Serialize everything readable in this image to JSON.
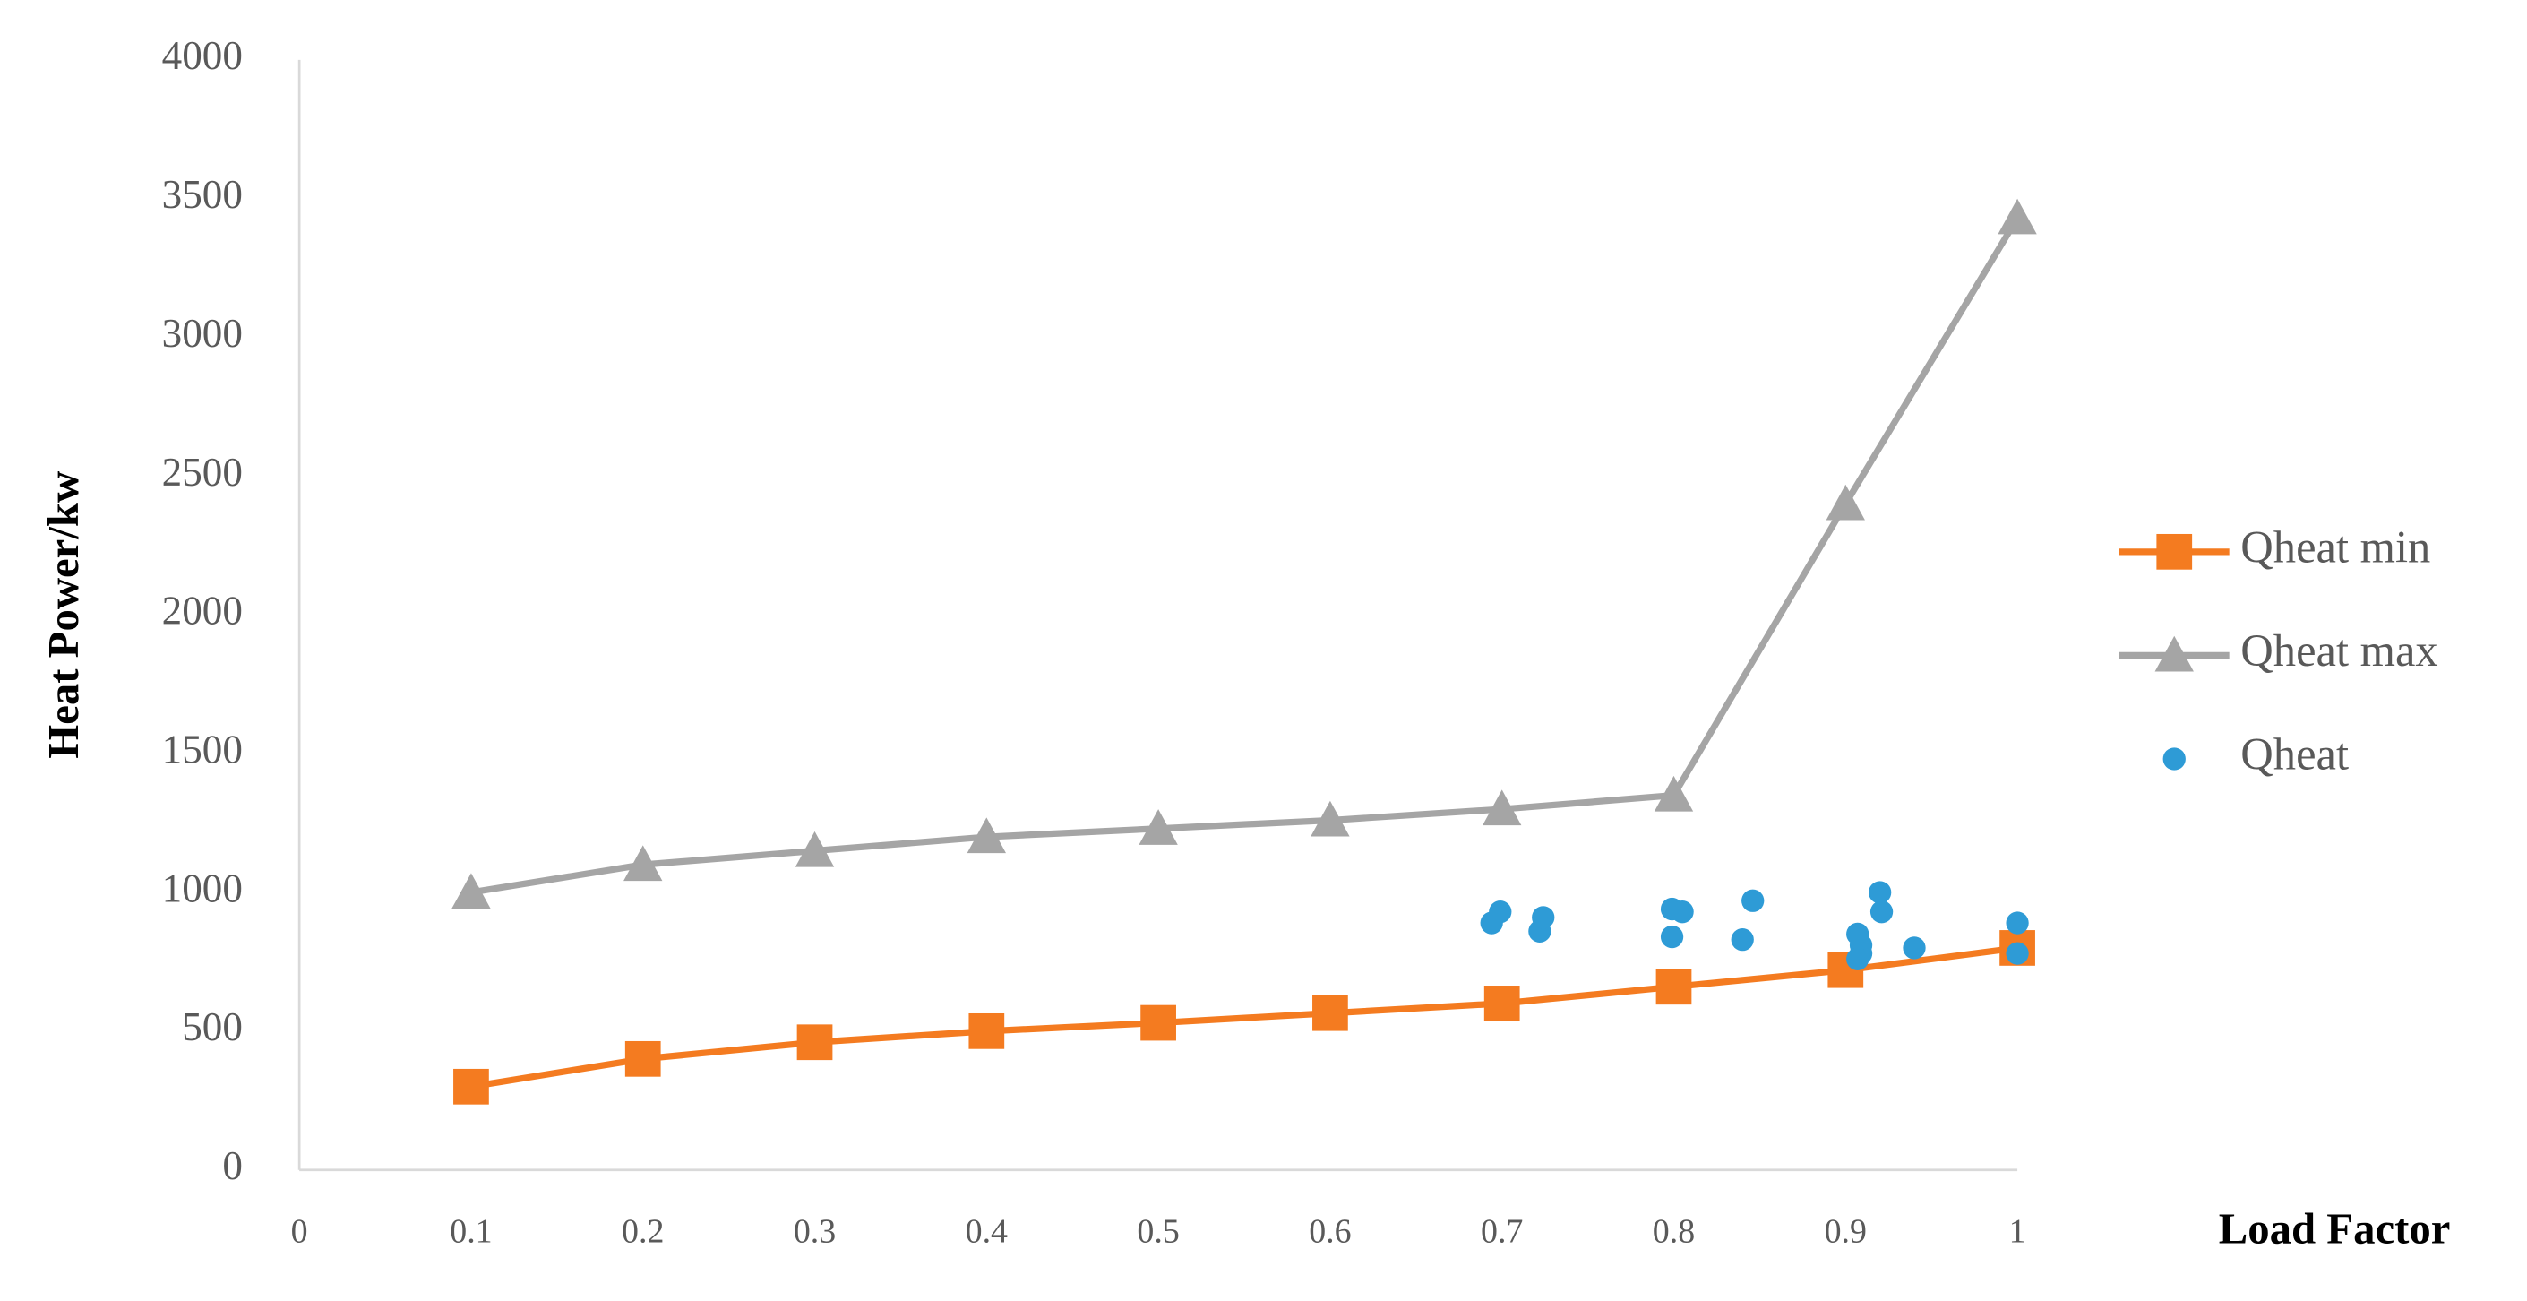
{
  "chart_data": {
    "type": "line",
    "ylabel": "Heat Power/kw",
    "xlabel": "Load Factor",
    "x": [
      0.1,
      0.2,
      0.3,
      0.4,
      0.5,
      0.6,
      0.7,
      0.8,
      0.9,
      1
    ],
    "xlim": [
      0,
      1
    ],
    "xticks": [
      0,
      0.1,
      0.2,
      0.3,
      0.4,
      0.5,
      0.6,
      0.7,
      0.8,
      0.9,
      1
    ],
    "ylim": [
      0,
      4000
    ],
    "yticks": [
      0,
      500,
      1000,
      1500,
      2000,
      2500,
      3000,
      3500,
      4000
    ],
    "grid": false,
    "legend": "right",
    "series": [
      {
        "name": "Qheat min",
        "color": "#f47b20",
        "marker": "square",
        "line": true,
        "values": [
          300,
          400,
          460,
          500,
          530,
          565,
          600,
          660,
          720,
          800
        ]
      },
      {
        "name": "Qheat max",
        "color": "#a5a5a5",
        "marker": "triangle",
        "line": true,
        "values": [
          1000,
          1100,
          1150,
          1200,
          1230,
          1260,
          1300,
          1350,
          2400,
          3430
        ]
      },
      {
        "name": "Qheat",
        "color": "#2e9bd6",
        "marker": "circle",
        "line": false,
        "x": [
          0.694,
          0.699,
          0.722,
          0.724,
          0.799,
          0.805,
          0.799,
          0.84,
          0.846,
          0.907,
          0.909,
          0.909,
          0.907,
          0.92,
          0.921,
          0.94,
          1.0,
          1.0
        ],
        "values": [
          890,
          930,
          860,
          910,
          940,
          930,
          840,
          830,
          970,
          850,
          810,
          780,
          760,
          1000,
          930,
          800,
          890,
          780
        ]
      }
    ]
  }
}
